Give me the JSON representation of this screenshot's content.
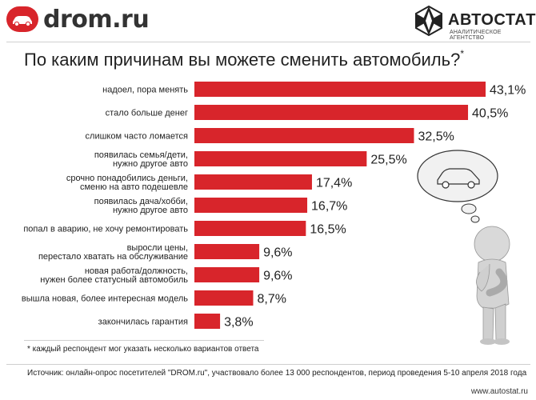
{
  "header": {
    "drom_logo_text": "drom.ru",
    "autostat_logo_text": "АВТОСТАТ",
    "autostat_subtitle": "АНАЛИТИЧЕСКОЕ АГЕНТСТВО"
  },
  "title": "По каким причинам вы можете сменить автомобиль?",
  "title_mark": "*",
  "footnote": "* каждый респондент мог указать несколько вариантов ответа",
  "source": "Источник: онлайн-опрос посетителей \"DROM.ru\", участвовало более 13 000 респондентов, период проведения 5-10 апреля 2018 года",
  "site": "www.autostat.ru",
  "colors": {
    "bar": "#d8252b",
    "text": "#222222",
    "figure": "#d9d9d9"
  },
  "illustration": "thinking-figure-with-car-thought-bubble",
  "chart_data": {
    "type": "bar",
    "orientation": "horizontal",
    "categories": [
      [
        "надоел, пора менять"
      ],
      [
        "стало больше денег"
      ],
      [
        "слишком часто ломается"
      ],
      [
        "появилась семья/дети,",
        "нужно другое авто"
      ],
      [
        "срочно понадобились деньги,",
        "сменю на авто подешевле"
      ],
      [
        "появилась дача/хобби,",
        "нужно другое авто"
      ],
      [
        "попал в аварию, не хочу ремонтировать"
      ],
      [
        "выросли цены,",
        "перестало хватать на обслуживание"
      ],
      [
        "новая работа/должность,",
        "нужен более статусный автомобиль"
      ],
      [
        "вышла новая, более интересная модель"
      ],
      [
        "закончилась гарантия"
      ]
    ],
    "values": [
      43.1,
      40.5,
      32.5,
      25.5,
      17.4,
      16.7,
      16.5,
      9.6,
      9.6,
      8.7,
      3.8
    ],
    "value_labels": [
      "43,1%",
      "40,5%",
      "32,5%",
      "25,5%",
      "17,4%",
      "16,7%",
      "16,5%",
      "9,6%",
      "9,6%",
      "8,7%",
      "3,8%"
    ],
    "unit": "%",
    "xlim": [
      0,
      43.1
    ],
    "grid": false,
    "legend": "none"
  }
}
